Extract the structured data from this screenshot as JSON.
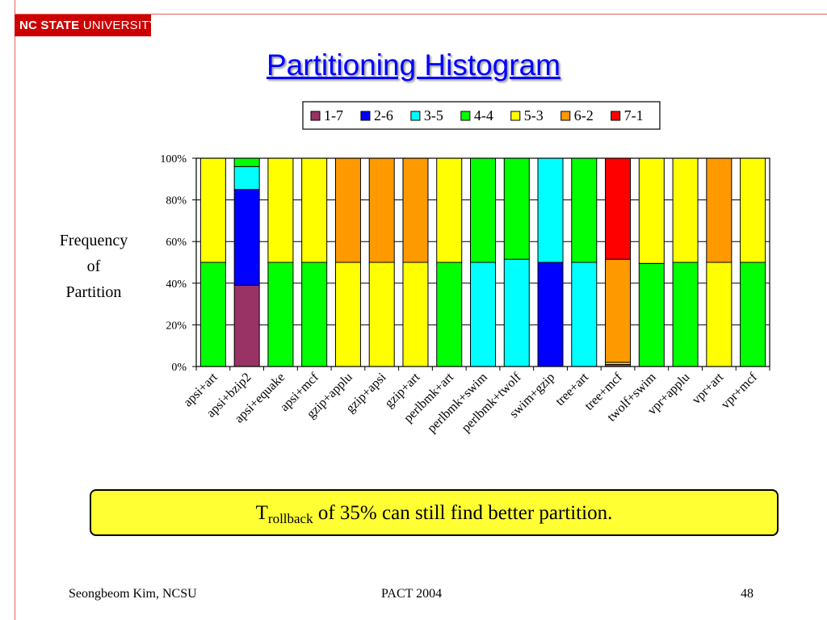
{
  "logo": {
    "bold": "NC STATE",
    "light": "UNIVERSITY"
  },
  "slide_title": "Partitioning Histogram",
  "y_axis_title": [
    "Frequency",
    "of",
    "Partition"
  ],
  "callout": {
    "main": "T",
    "sub": "rollback",
    "rest": " of 35% can still find better partition."
  },
  "footer": {
    "author": "Seongbeom Kim, NCSU",
    "venue": "PACT 2004",
    "page": "48"
  },
  "chart_data": {
    "type": "bar",
    "stacked": "percent",
    "categories": [
      "apsi+art",
      "apsi+bzip2",
      "apsi+equake",
      "apsi+mcf",
      "gzip+applu",
      "gzip+apsi",
      "gzip+art",
      "perlbmk+art",
      "perlbmk+swim",
      "perlbmk+twolf",
      "swim+gzip",
      "tree+art",
      "tree+mcf",
      "twolf+swim",
      "vpr+applu",
      "vpr+art",
      "vpr+mcf"
    ],
    "series": [
      {
        "name": "1-7",
        "color": "#993366",
        "values": [
          0,
          39,
          0,
          0,
          0,
          0,
          0,
          0,
          0,
          0,
          0,
          0,
          1,
          0,
          0,
          0,
          0
        ]
      },
      {
        "name": "2-6",
        "color": "#0000ff",
        "values": [
          0,
          46,
          0,
          0,
          0,
          0,
          0,
          0,
          0,
          0,
          50,
          0,
          0,
          0,
          0,
          0,
          0
        ]
      },
      {
        "name": "3-5",
        "color": "#00ffff",
        "values": [
          0,
          11,
          0,
          0,
          0,
          0,
          0,
          0,
          50,
          51.5,
          50,
          50,
          0,
          0,
          0,
          0,
          0
        ]
      },
      {
        "name": "4-4",
        "color": "#00ff00",
        "values": [
          50,
          4,
          50,
          50,
          0,
          0,
          0,
          50,
          50,
          48.5,
          0,
          50,
          0,
          49.5,
          50,
          0,
          50
        ]
      },
      {
        "name": "5-3",
        "color": "#ffff00",
        "values": [
          50,
          0,
          50,
          50,
          50,
          50,
          50,
          50,
          0,
          0,
          0,
          0,
          1,
          50.5,
          50,
          50,
          50
        ]
      },
      {
        "name": "6-2",
        "color": "#ff9900",
        "values": [
          0,
          0,
          0,
          0,
          50,
          50,
          50,
          0,
          0,
          0,
          0,
          0,
          49.5,
          0,
          0,
          50,
          0
        ]
      },
      {
        "name": "7-1",
        "color": "#ff0000",
        "values": [
          0,
          0,
          0,
          0,
          0,
          0,
          0,
          0,
          0,
          0,
          0,
          0,
          48.5,
          0,
          0,
          0,
          0
        ]
      }
    ],
    "y_ticks": [
      "0%",
      "20%",
      "40%",
      "60%",
      "80%",
      "100%"
    ],
    "ylim": [
      0,
      100
    ],
    "legend": "top",
    "grid": true
  }
}
